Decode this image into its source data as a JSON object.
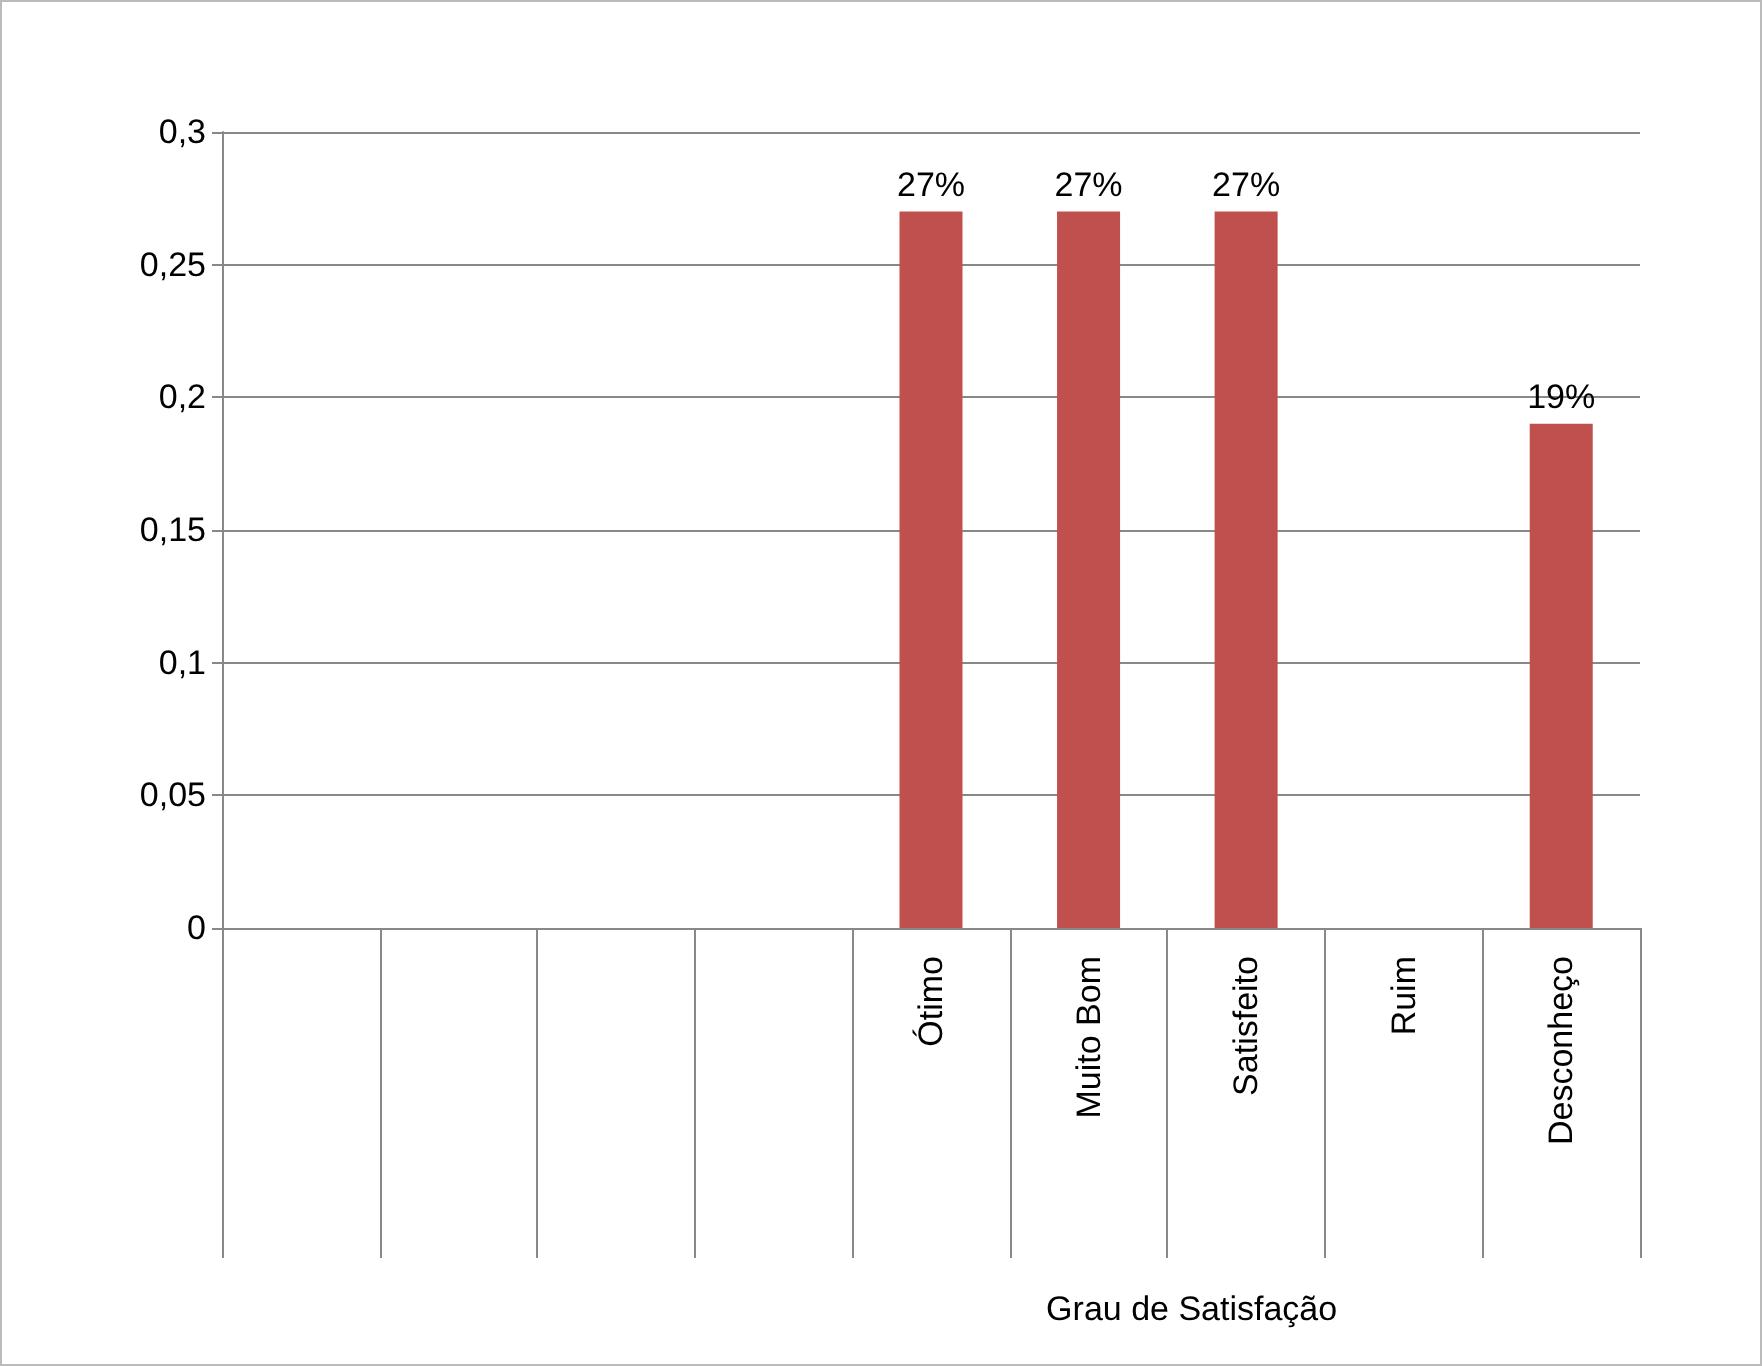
{
  "chart_data": {
    "type": "bar",
    "xlabel": "Grau de Satisfação",
    "categories": [
      null,
      null,
      null,
      null,
      "Ótimo",
      "Muito Bom",
      "Satisfeito",
      "Ruim",
      "Desconheço"
    ],
    "values": [
      null,
      null,
      null,
      null,
      0.27,
      0.27,
      0.27,
      null,
      0.19
    ],
    "value_labels": [
      null,
      null,
      null,
      null,
      "27%",
      "27%",
      "27%",
      null,
      "19%"
    ],
    "color": "#c0504d",
    "ylim": [
      0,
      0.3
    ],
    "yticks": [
      0,
      {
        "value": 0.05,
        "label": "0,05"
      },
      {
        "value": 0.1,
        "label": "0,1"
      },
      {
        "value": 0.15,
        "label": "0,15"
      },
      {
        "value": 0.2,
        "label": "0,2"
      },
      {
        "value": 0.25,
        "label": "0,25"
      },
      {
        "value": 0.3,
        "label": "0,3"
      }
    ],
    "grid": true
  }
}
